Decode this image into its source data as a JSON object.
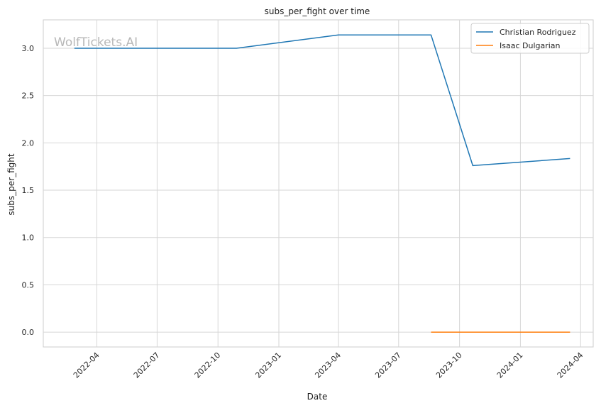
{
  "chart_data": {
    "type": "line",
    "title": "subs_per_fight over time",
    "xlabel": "Date",
    "ylabel": "subs_per_fight",
    "watermark": "WolfTickets.AI",
    "grid": true,
    "legend_position": "top-right",
    "x_ticks": [
      "2022-04",
      "2022-07",
      "2022-10",
      "2023-01",
      "2023-04",
      "2023-07",
      "2023-10",
      "2024-01",
      "2024-04"
    ],
    "y_ticks": [
      "0.0",
      "0.5",
      "1.0",
      "1.5",
      "2.0",
      "2.5",
      "3.0"
    ],
    "y_tick_values": [
      0,
      0.5,
      1.0,
      1.5,
      2.0,
      2.5,
      3.0
    ],
    "xlim": [
      "2022-01-10",
      "2024-04-20"
    ],
    "ylim": [
      -0.157,
      3.3
    ],
    "series": [
      {
        "name": "Christian Rodriguez",
        "color": "#1f77b4",
        "x": [
          "2022-02-26",
          "2022-05-21",
          "2022-10-29",
          "2023-04-01",
          "2023-08-19",
          "2023-10-21",
          "2024-03-16"
        ],
        "values": [
          3.0,
          3.0,
          3.0,
          3.14,
          3.14,
          1.76,
          1.835
        ]
      },
      {
        "name": "Isaac Dulgarian",
        "color": "#ff7f0e",
        "x": [
          "2023-08-19",
          "2024-03-16"
        ],
        "values": [
          0.0,
          0.0
        ]
      }
    ]
  }
}
